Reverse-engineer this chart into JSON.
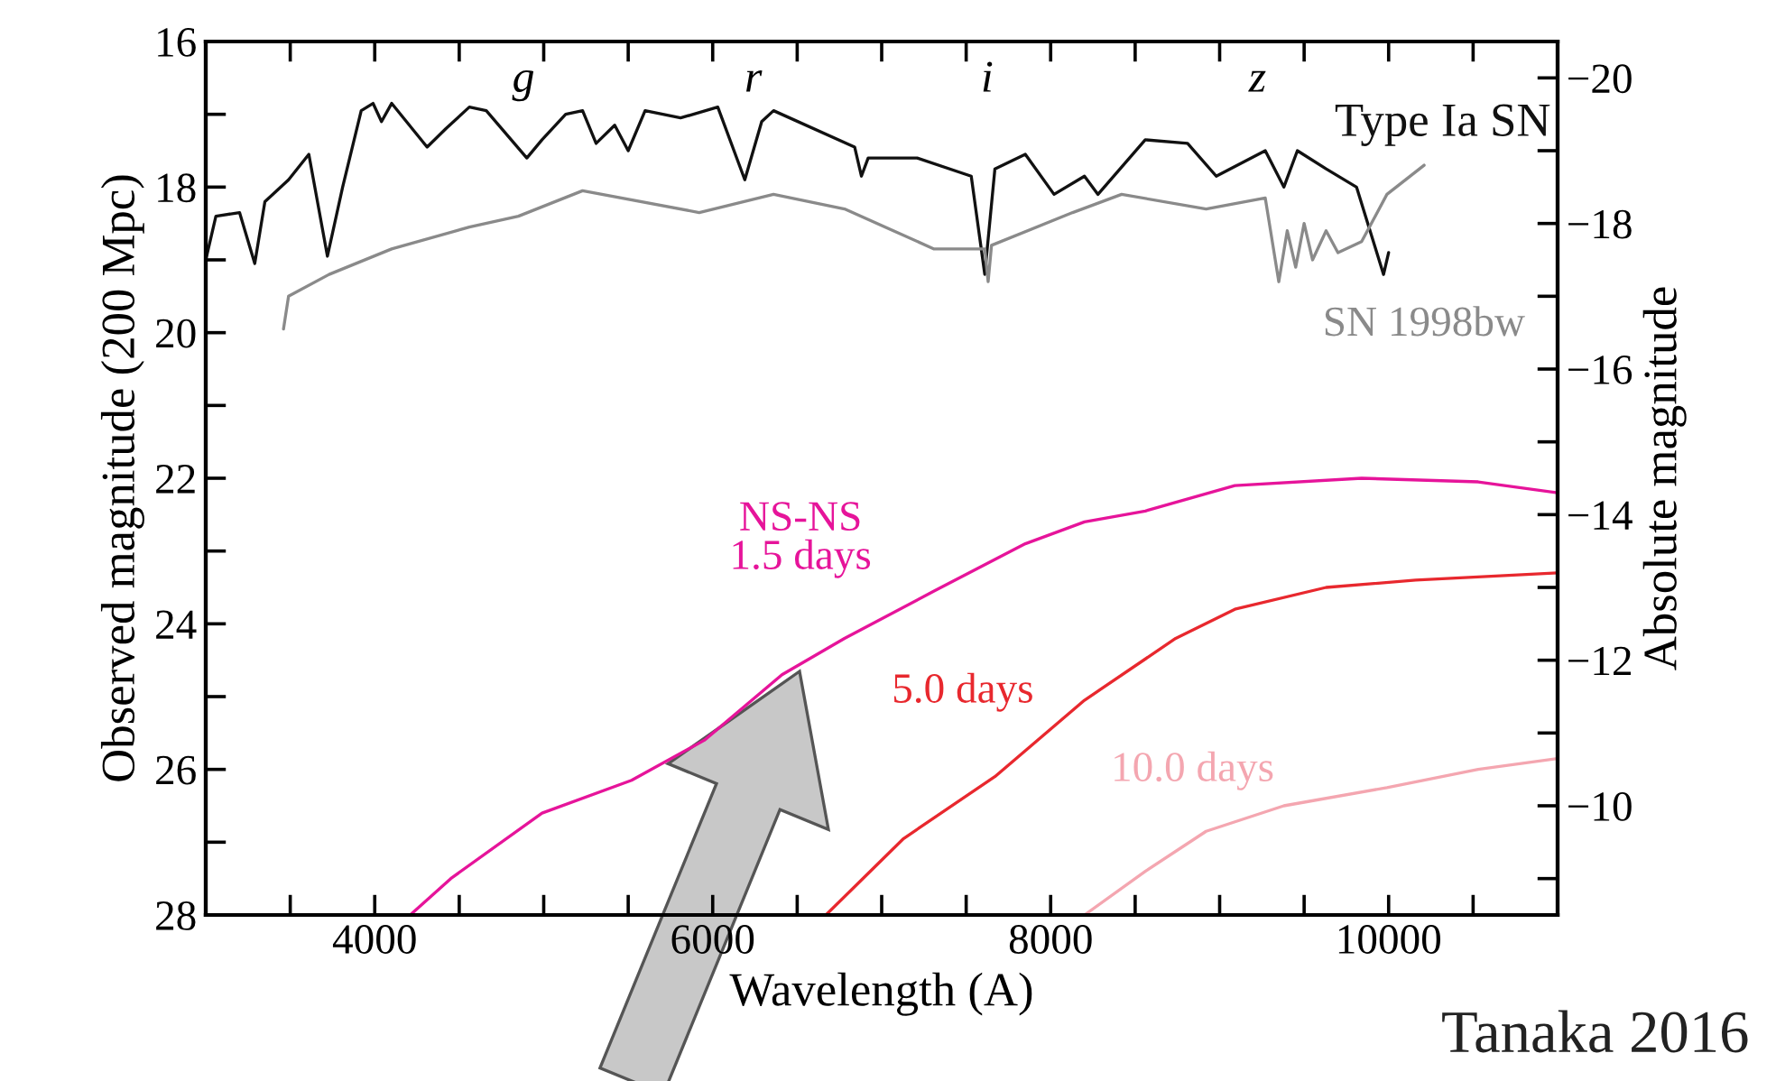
{
  "chart_data": {
    "type": "line",
    "xlabel": "Wavelength (A)",
    "ylabel": "Observed magnitude (200 Mpc)",
    "y2label": "Absolute magnitude",
    "xlim": [
      3000,
      11000
    ],
    "xticks": [
      {
        "value": 3500,
        "label": null
      },
      4000,
      {
        "value": 4500,
        "label": null
      },
      {
        "value": 5000,
        "label": null
      },
      {
        "value": 5500,
        "label": null
      },
      6000,
      {
        "value": 6500,
        "label": null
      },
      {
        "value": 7000,
        "label": null
      },
      {
        "value": 7500,
        "label": null
      },
      8000,
      {
        "value": 8500,
        "label": null
      },
      {
        "value": 9000,
        "label": null
      },
      {
        "value": 9500,
        "label": null
      },
      10000,
      {
        "value": 10500,
        "label": null
      }
    ],
    "ylim": [
      28,
      16
    ],
    "yticks": [
      16,
      {
        "value": 17,
        "label": null
      },
      18,
      {
        "value": 19,
        "label": null
      },
      20,
      {
        "value": 21,
        "label": null
      },
      22,
      {
        "value": 23,
        "label": null
      },
      24,
      {
        "value": 25,
        "label": null
      },
      26,
      {
        "value": 27,
        "label": null
      },
      28
    ],
    "y2lim": [
      -8.5,
      -20.5
    ],
    "y2ticks": [
      {
        "value": -9,
        "label": null
      },
      {
        "value": -10,
        "label": "−10"
      },
      {
        "value": -11,
        "label": null
      },
      {
        "value": -12,
        "label": "−12"
      },
      {
        "value": -13,
        "label": null
      },
      {
        "value": -14,
        "label": "−14"
      },
      {
        "value": -15,
        "label": null
      },
      {
        "value": -16,
        "label": "−16"
      },
      {
        "value": -17,
        "label": null
      },
      {
        "value": -18,
        "label": "−18"
      },
      {
        "value": -19,
        "label": null
      },
      {
        "value": -20,
        "label": "−20"
      }
    ],
    "grid": false,
    "legend": false,
    "marker": "none",
    "line_style": "solid",
    "series": [
      {
        "name": "Type Ia SN",
        "color": "#111111",
        "x": [
          3000,
          3060,
          3200,
          3290,
          3350,
          3490,
          3610,
          3720,
          3810,
          3920,
          3990,
          4040,
          4100,
          4310,
          4420,
          4560,
          4660,
          4900,
          4990,
          5130,
          5230,
          5310,
          5420,
          5500,
          5600,
          5810,
          6030,
          6190,
          6290,
          6360,
          6840,
          6880,
          6920,
          7210,
          7530,
          7610,
          7670,
          7850,
          8020,
          8200,
          8280,
          8560,
          8810,
          8980,
          9270,
          9380,
          9460,
          9630,
          9810,
          9970,
          10000
        ],
        "values": [
          19.0,
          18.4,
          18.35,
          19.05,
          18.2,
          17.9,
          17.55,
          18.95,
          18.0,
          16.95,
          16.85,
          17.1,
          16.85,
          17.45,
          17.2,
          16.9,
          16.95,
          17.6,
          17.35,
          17.0,
          16.95,
          17.4,
          17.15,
          17.5,
          16.95,
          17.05,
          16.9,
          17.9,
          17.1,
          16.95,
          17.45,
          17.85,
          17.6,
          17.6,
          17.85,
          19.2,
          17.75,
          17.55,
          18.1,
          17.85,
          18.1,
          17.35,
          17.4,
          17.85,
          17.5,
          18.0,
          17.5,
          17.75,
          18.0,
          19.2,
          18.9
        ]
      },
      {
        "name": "SN 1998bw",
        "color": "#8a8a8a",
        "x": [
          3460,
          3490,
          3730,
          4100,
          4560,
          4850,
          5230,
          5920,
          6360,
          6780,
          7310,
          7610,
          7630,
          7650,
          8130,
          8420,
          8920,
          9270,
          9350,
          9400,
          9450,
          9500,
          9550,
          9630,
          9700,
          9840,
          9990,
          10210
        ],
        "values": [
          19.95,
          19.5,
          19.2,
          18.85,
          18.55,
          18.4,
          18.05,
          18.35,
          18.1,
          18.3,
          18.85,
          18.85,
          19.3,
          18.8,
          18.35,
          18.1,
          18.3,
          18.15,
          19.3,
          18.6,
          19.1,
          18.5,
          19.0,
          18.6,
          18.9,
          18.75,
          18.1,
          17.7
        ]
      },
      {
        "name": "NS-NS\n1.5 days",
        "color": "#e6149a",
        "x": [
          4210,
          4450,
          4990,
          5520,
          5950,
          6410,
          6780,
          7310,
          7850,
          8200,
          8560,
          9090,
          9840,
          10530,
          11000
        ],
        "values": [
          28.0,
          27.5,
          26.6,
          26.15,
          25.6,
          24.7,
          24.2,
          23.55,
          22.9,
          22.6,
          22.45,
          22.1,
          22.0,
          22.05,
          22.2
        ]
      },
      {
        "name": "5.0 days",
        "color": "#e8282e",
        "x": [
          6670,
          7130,
          7670,
          8200,
          8740,
          9090,
          9630,
          10160,
          11000
        ],
        "values": [
          28.0,
          26.95,
          26.1,
          25.05,
          24.2,
          23.8,
          23.5,
          23.4,
          23.3
        ]
      },
      {
        "name": "10.0 days",
        "color": "#f4a6b0",
        "x": [
          8200,
          8560,
          8920,
          9380,
          9990,
          10530,
          11000
        ],
        "values": [
          28.0,
          27.4,
          26.85,
          26.5,
          26.25,
          26.0,
          25.85
        ]
      }
    ],
    "annotations": [
      "g",
      "r",
      "i",
      "z",
      "Tanaka 2016"
    ]
  }
}
